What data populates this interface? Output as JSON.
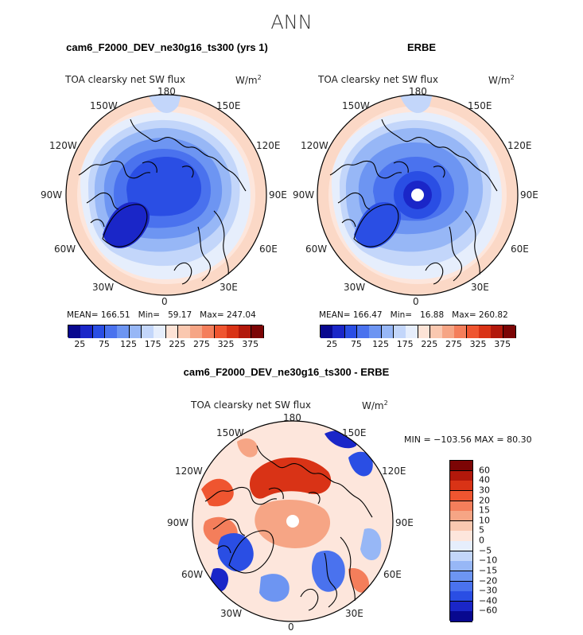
{
  "figure_title": "ANN",
  "panels": [
    {
      "title": "cam6_F2000_DEV_ne30g16_ts300 (yrs 1)",
      "variable": "TOA clearsky net SW flux",
      "units": "W/m",
      "units_sup": "2",
      "mean_label": "MEAN=",
      "mean": "166.51",
      "min_label": "Min=",
      "min": "59.17",
      "max_label": "Max=",
      "max": "247.04",
      "pole_hole": false
    },
    {
      "title": "ERBE",
      "variable": "TOA clearsky net SW flux",
      "units": "W/m",
      "units_sup": "2",
      "mean_label": "MEAN=",
      "mean": "166.47",
      "min_label": "Min=",
      "min": "16.88",
      "max_label": "Max=",
      "max": "260.82",
      "pole_hole": true
    }
  ],
  "diff_panel": {
    "title": "cam6_F2000_DEV_ne30g16_ts300 - ERBE",
    "variable": "TOA clearsky net SW flux",
    "units": "W/m",
    "units_sup": "2",
    "minmax": "MIN = −103.56 MAX =  80.30"
  },
  "longitude_labels": {
    "top": "180",
    "bottom": "0",
    "left": "90W",
    "right": "90E",
    "upper_left_1": "150W",
    "upper_left_2": "120W",
    "upper_right_1": "150E",
    "upper_right_2": "120E",
    "lower_left_1": "60W",
    "lower_left_2": "30W",
    "lower_right_1": "60E",
    "lower_right_2": "30E"
  },
  "colorbar_abs": {
    "tick_labels": [
      "25",
      "75",
      "125",
      "175",
      "225",
      "275",
      "325",
      "375"
    ],
    "colors": [
      "#08088f",
      "#1a26c8",
      "#2a4ee4",
      "#4a72ee",
      "#6d95f2",
      "#97b7f6",
      "#c3d6fa",
      "#e6eefc",
      "#fde3d6",
      "#fac8b0",
      "#f6a585",
      "#f47e5b",
      "#ef5530",
      "#d93316",
      "#b2180b",
      "#7c0505"
    ]
  },
  "colorbar_diff": {
    "tick_labels": [
      "60",
      "40",
      "30",
      "20",
      "15",
      "10",
      "5",
      "0",
      "−5",
      "−10",
      "−15",
      "−20",
      "−30",
      "−40",
      "−60"
    ],
    "colors": [
      "#7c0505",
      "#b2180b",
      "#d93316",
      "#ef5530",
      "#f47e5b",
      "#f6a585",
      "#fac8b0",
      "#fde6dc",
      "#e6eefc",
      "#c3d6fa",
      "#97b7f6",
      "#6d95f2",
      "#4a72ee",
      "#2a4ee4",
      "#1a26c8",
      "#08088f"
    ]
  }
}
